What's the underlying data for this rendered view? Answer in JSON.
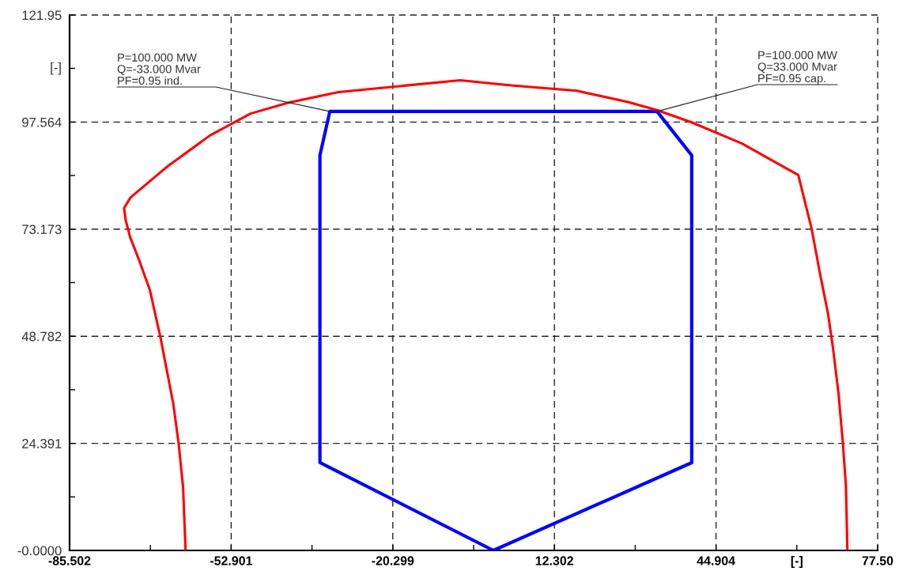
{
  "chart_data": {
    "type": "line",
    "xlabel": "[-]",
    "ylabel": "[-]",
    "annotations": [
      {
        "text": "P=100.000 MW\nQ=-33.000 Mvar\nPF=0.95 ind.",
        "x": -33,
        "y": 100
      },
      {
        "text": "P=100.000 MW\nQ=33.000 Mvar\nPF=0.95 cap.",
        "x": 33,
        "y": 100
      }
    ],
    "series": [
      {
        "color": "#0000ff",
        "x": [
          0,
          -35,
          -35,
          -33,
          33
        ],
        "values": [
          0,
          20,
          90,
          100,
          100
        ]
      },
      {
        "color": "#0000ff",
        "x": [
          33,
          40,
          40,
          0
        ],
        "values": [
          100,
          90,
          20,
          0
        ]
      },
      {
        "color": "#ff0000",
        "x": [
          -62.1,
          -62.6,
          -63.5,
          -64.6,
          -67.2,
          -69.3,
          -71.4,
          -73.3,
          -74.2,
          -74.5,
          -73.2,
          -65.6,
          -57.2,
          -49.0,
          -41.3,
          -31.3,
          -6.7,
          3.6,
          16.8,
          27.3,
          33.0,
          40.0,
          50.1,
          61.5,
          64.2,
          65.9,
          67.5,
          68.5,
          69.6,
          70.5,
          71.1,
          71.4
        ],
        "values": [
          0,
          14.3,
          24.4,
          33.5,
          48.7,
          59.3,
          65.9,
          71.4,
          75.3,
          78.0,
          80.4,
          87.6,
          94.5,
          99.5,
          102.0,
          104.4,
          107.1,
          105.9,
          104.7,
          102.1,
          100.3,
          97.5,
          92.7,
          85.5,
          73.2,
          62.9,
          53.9,
          46.1,
          35.9,
          24.3,
          14.8,
          0
        ]
      }
    ],
    "xlim": [
      -85.502,
      77.505
    ],
    "ylim": [
      0,
      121.95
    ],
    "xticks": [
      -85.502,
      {
        "value": -69.2,
        "label": null
      },
      -52.901,
      {
        "value": -36.6,
        "label": null
      },
      -20.299,
      {
        "value": -4.0,
        "label": null
      },
      12.302,
      {
        "value": 28.6,
        "label": null
      },
      44.904,
      {
        "value": 61.2,
        "label": null
      },
      {
        "value": 77.505,
        "label": "77.50"
      }
    ],
    "yticks": [
      {
        "value": 0,
        "label": "-0.0000"
      },
      {
        "value": 12.2,
        "label": null
      },
      24.391,
      {
        "value": 36.6,
        "label": null
      },
      48.782,
      {
        "value": 61.0,
        "label": null
      },
      73.173,
      {
        "value": 85.4,
        "label": null
      },
      97.564,
      {
        "value": 109.8,
        "label": null
      },
      121.95
    ],
    "grid": true
  }
}
